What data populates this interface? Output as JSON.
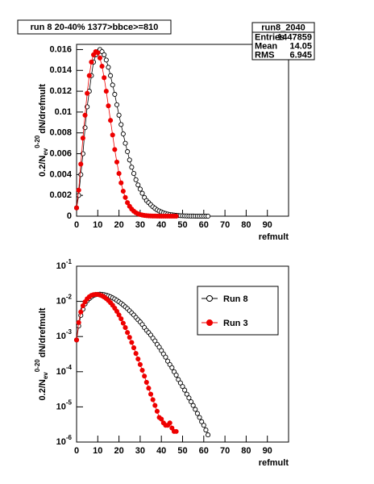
{
  "chart_data": [
    {
      "type": "line",
      "title": "run 8 20-40% 1377>bbce>=810",
      "stats": {
        "title": "run8_2040",
        "rows": [
          {
            "label": "Entries",
            "value": 1447859
          },
          {
            "label": "Mean",
            "value": 14.05
          },
          {
            "label": "RMS",
            "value": 6.945
          }
        ]
      },
      "x_label": "refmult",
      "y_label": {
        "base": "0.2/N",
        "sub": "ev",
        "sup": "0-20",
        "rest": "dN/drefmult"
      },
      "xlim": [
        0,
        100
      ],
      "xticks": [
        0,
        10,
        20,
        30,
        40,
        50,
        60,
        70,
        80,
        90
      ],
      "ylim": [
        0,
        0.0165
      ],
      "yticks": [
        0,
        0.002,
        0.004,
        0.006,
        0.008,
        0.01,
        0.012,
        0.014,
        0.016
      ],
      "log_y": false,
      "series": [
        {
          "name": "Run 8",
          "color": "#000000",
          "marker": "open",
          "x": [
            0,
            1,
            2,
            3,
            4,
            5,
            6,
            7,
            8,
            9,
            10,
            11,
            12,
            13,
            14,
            15,
            16,
            17,
            18,
            19,
            20,
            21,
            22,
            23,
            24,
            25,
            26,
            27,
            28,
            29,
            30,
            31,
            32,
            33,
            34,
            35,
            36,
            37,
            38,
            39,
            40,
            41,
            42,
            43,
            44,
            45,
            46,
            47,
            48,
            49,
            50,
            51,
            52,
            53,
            54,
            55,
            56,
            57,
            58,
            59,
            60,
            61,
            62
          ],
          "values": [
            0.0008,
            0.002,
            0.004,
            0.006,
            0.0085,
            0.0105,
            0.012,
            0.0135,
            0.0148,
            0.0155,
            0.0158,
            0.016,
            0.0158,
            0.0155,
            0.015,
            0.0143,
            0.0135,
            0.0126,
            0.0117,
            0.0107,
            0.0097,
            0.0088,
            0.0079,
            0.007,
            0.0062,
            0.0054,
            0.0047,
            0.0041,
            0.0035,
            0.003,
            0.0026,
            0.0022,
            0.0018,
            0.0015,
            0.0013,
            0.0011,
            0.0009,
            0.00075,
            0.0006,
            0.0005,
            0.0004,
            0.00032,
            0.00026,
            0.0002,
            0.00016,
            0.00013,
            0.0001,
            8e-05,
            6e-05,
            4.8e-05,
            3.8e-05,
            3e-05,
            2.3e-05,
            1.8e-05,
            1.4e-05,
            1.1e-05,
            8.5e-06,
            6.5e-06,
            5e-06,
            3.8e-06,
            3e-06,
            2.2e-06,
            1.6e-06
          ]
        },
        {
          "name": "Run 3",
          "color": "#ee0000",
          "marker": "filled",
          "x": [
            0,
            1,
            2,
            3,
            4,
            5,
            6,
            7,
            8,
            9,
            10,
            11,
            12,
            13,
            14,
            15,
            16,
            17,
            18,
            19,
            20,
            21,
            22,
            23,
            24,
            25,
            26,
            27,
            28,
            29,
            30,
            31,
            32,
            33,
            34,
            35,
            36,
            37,
            38,
            39,
            40,
            41,
            42,
            43,
            44,
            45,
            46,
            47
          ],
          "values": [
            0.0008,
            0.0025,
            0.005,
            0.0075,
            0.0097,
            0.0118,
            0.0135,
            0.0148,
            0.0155,
            0.0158,
            0.0157,
            0.0152,
            0.0144,
            0.0133,
            0.012,
            0.0106,
            0.0092,
            0.0078,
            0.0064,
            0.0052,
            0.0041,
            0.0032,
            0.0024,
            0.0018,
            0.0013,
            0.00095,
            0.00068,
            0.00048,
            0.00033,
            0.00023,
            0.00016,
            0.00011,
            7.5e-05,
            5e-05,
            3.4e-05,
            2.3e-05,
            1.6e-05,
            1.1e-05,
            7.5e-06,
            5e-06,
            4.5e-06,
            3.5e-06,
            3e-06,
            3e-06,
            3.5e-06,
            2.5e-06,
            2e-06,
            2e-06
          ]
        }
      ]
    },
    {
      "type": "line",
      "x_label": "refmult",
      "y_label": {
        "base": "0.2/N",
        "sub": "ev",
        "sup": "0-20",
        "rest": "dN/drefmult"
      },
      "xlim": [
        0,
        100
      ],
      "xticks": [
        0,
        10,
        20,
        30,
        40,
        50,
        60,
        70,
        80,
        90
      ],
      "ylim": [
        1e-06,
        0.1
      ],
      "yticks": [
        {
          "value": 1e-06,
          "label": "10",
          "exponent": "-6"
        },
        {
          "value": 1e-05,
          "label": "10",
          "exponent": "-5"
        },
        {
          "value": 0.0001,
          "label": "10",
          "exponent": "-4"
        },
        {
          "value": 0.001,
          "label": "10",
          "exponent": "-3"
        },
        {
          "value": 0.01,
          "label": "10",
          "exponent": "-2"
        },
        {
          "value": 0.1,
          "label": "10",
          "exponent": "-1"
        }
      ],
      "log_y": true,
      "legend": "upper right",
      "series": [
        {
          "name": "Run 8",
          "color": "#000000",
          "marker": "open",
          "x": [
            0,
            1,
            2,
            3,
            4,
            5,
            6,
            7,
            8,
            9,
            10,
            11,
            12,
            13,
            14,
            15,
            16,
            17,
            18,
            19,
            20,
            21,
            22,
            23,
            24,
            25,
            26,
            27,
            28,
            29,
            30,
            31,
            32,
            33,
            34,
            35,
            36,
            37,
            38,
            39,
            40,
            41,
            42,
            43,
            44,
            45,
            46,
            47,
            48,
            49,
            50,
            51,
            52,
            53,
            54,
            55,
            56,
            57,
            58,
            59,
            60,
            61,
            62
          ],
          "values": [
            0.0008,
            0.002,
            0.004,
            0.006,
            0.0085,
            0.0105,
            0.012,
            0.0135,
            0.0148,
            0.0155,
            0.0158,
            0.016,
            0.0158,
            0.0155,
            0.015,
            0.0143,
            0.0135,
            0.0126,
            0.0117,
            0.0107,
            0.0097,
            0.0088,
            0.0079,
            0.007,
            0.0062,
            0.0054,
            0.0047,
            0.0041,
            0.0035,
            0.003,
            0.0026,
            0.0022,
            0.0018,
            0.0015,
            0.0013,
            0.0011,
            0.0009,
            0.00075,
            0.0006,
            0.0005,
            0.0004,
            0.00032,
            0.00026,
            0.0002,
            0.00016,
            0.00013,
            0.0001,
            8e-05,
            6e-05,
            4.8e-05,
            3.8e-05,
            3e-05,
            2.3e-05,
            1.8e-05,
            1.4e-05,
            1.1e-05,
            8.5e-06,
            6.5e-06,
            5e-06,
            3.8e-06,
            3e-06,
            2.2e-06,
            1.6e-06
          ]
        },
        {
          "name": "Run 3",
          "color": "#ee0000",
          "marker": "filled",
          "x": [
            0,
            1,
            2,
            3,
            4,
            5,
            6,
            7,
            8,
            9,
            10,
            11,
            12,
            13,
            14,
            15,
            16,
            17,
            18,
            19,
            20,
            21,
            22,
            23,
            24,
            25,
            26,
            27,
            28,
            29,
            30,
            31,
            32,
            33,
            34,
            35,
            36,
            37,
            38,
            39,
            40,
            41,
            42,
            43,
            44,
            45,
            46,
            47
          ],
          "values": [
            0.0008,
            0.0025,
            0.005,
            0.0075,
            0.0097,
            0.0118,
            0.0135,
            0.0148,
            0.0155,
            0.0158,
            0.0157,
            0.0152,
            0.0144,
            0.0133,
            0.012,
            0.0106,
            0.0092,
            0.0078,
            0.0064,
            0.0052,
            0.0041,
            0.0032,
            0.0024,
            0.0018,
            0.0013,
            0.00095,
            0.00068,
            0.00048,
            0.00033,
            0.00023,
            0.00016,
            0.00011,
            7.5e-05,
            5e-05,
            3.4e-05,
            2.3e-05,
            1.6e-05,
            1.1e-05,
            7.5e-06,
            5e-06,
            4.5e-06,
            3.5e-06,
            3e-06,
            3e-06,
            3.5e-06,
            2.5e-06,
            2e-06,
            2e-06
          ]
        }
      ]
    }
  ]
}
